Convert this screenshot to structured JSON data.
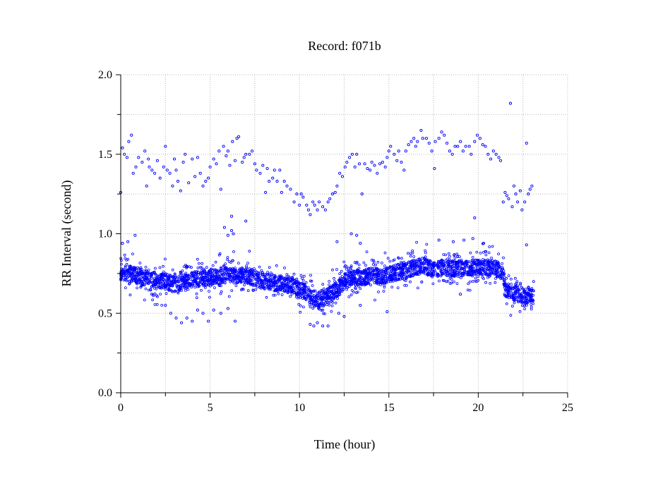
{
  "chart_data": {
    "type": "scatter",
    "title": "Record:  f071b",
    "xlabel": "Time (hour)",
    "ylabel": "RR Interval (second)",
    "xlim": [
      0,
      25
    ],
    "ylim": [
      0,
      2.0
    ],
    "x_ticks": [
      0,
      5,
      10,
      15,
      20,
      25
    ],
    "x_tick_labels": [
      "0",
      "5",
      "10",
      "15",
      "20",
      "25"
    ],
    "y_ticks": [
      0,
      0.5,
      1.0,
      1.5,
      2.0
    ],
    "y_tick_labels": [
      "0.0",
      "0.5",
      "1.0",
      "1.5",
      "2.0"
    ],
    "grid": true,
    "grid_style": "dotted",
    "marker_color": "#0000ff",
    "marker": "open-circle",
    "series": [
      {
        "points": [
          [
            0.0,
            1.26
          ],
          [
            0.1,
            1.54
          ],
          [
            0.2,
            1.5
          ],
          [
            0.35,
            1.48
          ],
          [
            0.45,
            1.58
          ],
          [
            0.6,
            1.62
          ],
          [
            0.7,
            1.38
          ],
          [
            0.85,
            1.42
          ],
          [
            1.0,
            1.48
          ],
          [
            1.2,
            1.45
          ],
          [
            1.35,
            1.52
          ],
          [
            1.45,
            1.3
          ],
          [
            1.55,
            1.47
          ],
          [
            1.6,
            1.42
          ],
          [
            1.75,
            1.4
          ],
          [
            1.9,
            1.38
          ],
          [
            2.05,
            1.46
          ],
          [
            2.2,
            1.35
          ],
          [
            2.4,
            1.42
          ],
          [
            2.5,
            1.55
          ],
          [
            2.6,
            1.4
          ],
          [
            2.75,
            1.38
          ],
          [
            2.9,
            1.3
          ],
          [
            3.0,
            1.47
          ],
          [
            3.1,
            1.4
          ],
          [
            3.2,
            1.33
          ],
          [
            3.35,
            1.27
          ],
          [
            3.5,
            1.45
          ],
          [
            3.6,
            1.5
          ],
          [
            3.8,
            1.32
          ],
          [
            4.0,
            1.47
          ],
          [
            4.15,
            1.36
          ],
          [
            4.3,
            1.48
          ],
          [
            4.45,
            1.38
          ],
          [
            4.6,
            1.3
          ],
          [
            4.75,
            1.33
          ],
          [
            4.9,
            1.35
          ],
          [
            5.0,
            1.42
          ],
          [
            5.2,
            1.47
          ],
          [
            5.35,
            1.44
          ],
          [
            5.5,
            1.52
          ],
          [
            5.6,
            1.28
          ],
          [
            5.75,
            1.55
          ],
          [
            5.9,
            1.49
          ],
          [
            6.0,
            1.52
          ],
          [
            6.1,
            1.43
          ],
          [
            6.25,
            1.58
          ],
          [
            6.4,
            1.46
          ],
          [
            6.5,
            1.6
          ],
          [
            6.6,
            1.61
          ],
          [
            6.8,
            1.45
          ],
          [
            6.9,
            1.48
          ],
          [
            7.0,
            1.5
          ],
          [
            7.2,
            1.5
          ],
          [
            7.35,
            1.52
          ],
          [
            7.5,
            1.44
          ],
          [
            7.6,
            1.4
          ],
          [
            7.8,
            1.38
          ],
          [
            7.95,
            1.43
          ],
          [
            8.1,
            1.26
          ],
          [
            8.2,
            1.41
          ],
          [
            8.3,
            1.33
          ],
          [
            8.5,
            1.35
          ],
          [
            8.6,
            1.4
          ],
          [
            8.75,
            1.33
          ],
          [
            8.9,
            1.4
          ],
          [
            9.0,
            1.26
          ],
          [
            9.15,
            1.33
          ],
          [
            9.3,
            1.3
          ],
          [
            9.5,
            1.28
          ],
          [
            9.7,
            1.2
          ],
          [
            9.85,
            1.25
          ],
          [
            10.0,
            1.18
          ],
          [
            10.1,
            1.25
          ],
          [
            10.2,
            1.23
          ],
          [
            10.4,
            1.18
          ],
          [
            10.5,
            1.15
          ],
          [
            10.6,
            1.12
          ],
          [
            10.75,
            1.2
          ],
          [
            10.85,
            1.18
          ],
          [
            11.0,
            1.15
          ],
          [
            11.1,
            1.2
          ],
          [
            11.3,
            1.17
          ],
          [
            11.45,
            1.15
          ],
          [
            11.6,
            1.2
          ],
          [
            11.7,
            1.22
          ],
          [
            11.85,
            1.25
          ],
          [
            12.0,
            1.26
          ],
          [
            12.1,
            1.3
          ],
          [
            12.25,
            1.38
          ],
          [
            12.4,
            1.36
          ],
          [
            12.55,
            1.42
          ],
          [
            12.65,
            1.45
          ],
          [
            12.8,
            1.48
          ],
          [
            12.95,
            1.5
          ],
          [
            13.1,
            1.42
          ],
          [
            13.2,
            1.5
          ],
          [
            13.35,
            1.44
          ],
          [
            13.5,
            1.25
          ],
          [
            13.65,
            1.44
          ],
          [
            13.8,
            1.41
          ],
          [
            13.95,
            1.4
          ],
          [
            14.05,
            1.45
          ],
          [
            14.2,
            1.43
          ],
          [
            14.35,
            1.38
          ],
          [
            14.5,
            1.44
          ],
          [
            14.65,
            1.45
          ],
          [
            14.8,
            1.42
          ],
          [
            14.9,
            1.48
          ],
          [
            15.0,
            1.52
          ],
          [
            15.1,
            1.55
          ],
          [
            15.3,
            1.5
          ],
          [
            15.45,
            1.46
          ],
          [
            15.55,
            1.52
          ],
          [
            15.7,
            1.45
          ],
          [
            15.85,
            1.4
          ],
          [
            15.95,
            1.52
          ],
          [
            16.1,
            1.56
          ],
          [
            16.25,
            1.58
          ],
          [
            16.4,
            1.6
          ],
          [
            16.5,
            1.55
          ],
          [
            16.6,
            1.58
          ],
          [
            16.8,
            1.65
          ],
          [
            16.9,
            1.6
          ],
          [
            17.1,
            1.6
          ],
          [
            17.25,
            1.57
          ],
          [
            17.4,
            1.52
          ],
          [
            17.55,
            1.41
          ],
          [
            17.6,
            1.58
          ],
          [
            17.8,
            1.6
          ],
          [
            17.95,
            1.64
          ],
          [
            18.1,
            1.62
          ],
          [
            18.25,
            1.57
          ],
          [
            18.4,
            1.52
          ],
          [
            18.55,
            1.5
          ],
          [
            18.7,
            1.55
          ],
          [
            18.85,
            1.55
          ],
          [
            19.0,
            1.58
          ],
          [
            19.15,
            1.52
          ],
          [
            19.3,
            1.55
          ],
          [
            19.5,
            1.55
          ],
          [
            19.6,
            1.5
          ],
          [
            19.8,
            1.58
          ],
          [
            19.95,
            1.62
          ],
          [
            20.1,
            1.6
          ],
          [
            20.25,
            1.56
          ],
          [
            20.4,
            1.55
          ],
          [
            20.55,
            1.5
          ],
          [
            20.7,
            1.47
          ],
          [
            20.85,
            1.52
          ],
          [
            21.0,
            1.5
          ],
          [
            21.15,
            1.48
          ],
          [
            21.25,
            1.46
          ],
          [
            21.4,
            1.2
          ],
          [
            21.5,
            1.26
          ],
          [
            21.6,
            1.24
          ],
          [
            21.7,
            1.22
          ],
          [
            21.8,
            1.82
          ],
          [
            21.9,
            1.17
          ],
          [
            22.0,
            1.3
          ],
          [
            22.1,
            1.25
          ],
          [
            22.2,
            1.2
          ],
          [
            22.35,
            1.27
          ],
          [
            22.45,
            1.15
          ],
          [
            22.6,
            1.2
          ],
          [
            22.7,
            1.57
          ],
          [
            22.8,
            1.25
          ],
          [
            22.9,
            1.28
          ],
          [
            23.0,
            1.3
          ],
          [
            11.0,
            0.55
          ],
          [
            11.3,
            0.52
          ],
          [
            11.6,
            0.57
          ],
          [
            11.9,
            0.6
          ],
          [
            12.2,
            0.65
          ],
          [
            12.5,
            0.68
          ],
          [
            12.8,
            0.7
          ],
          [
            13.1,
            0.72
          ],
          [
            2.5,
            0.55
          ],
          [
            2.8,
            0.5
          ],
          [
            3.1,
            0.47
          ],
          [
            3.4,
            0.44
          ],
          [
            3.7,
            0.47
          ],
          [
            4.0,
            0.45
          ],
          [
            4.3,
            0.52
          ],
          [
            4.6,
            0.5
          ],
          [
            4.9,
            0.45
          ],
          [
            5.2,
            0.52
          ],
          [
            5.6,
            0.5
          ],
          [
            6.0,
            0.53
          ],
          [
            6.4,
            0.45
          ],
          [
            10.6,
            0.43
          ],
          [
            10.8,
            0.42
          ],
          [
            11.0,
            0.44
          ],
          [
            11.3,
            0.42
          ],
          [
            11.6,
            0.42
          ],
          [
            12.2,
            0.5
          ],
          [
            12.5,
            0.48
          ],
          [
            13.4,
            0.55
          ],
          [
            14.9,
            0.51
          ],
          [
            19.0,
            0.62
          ],
          [
            19.8,
            1.1
          ],
          [
            5.8,
            1.04
          ],
          [
            6.3,
            1.0
          ],
          [
            6.2,
            1.11
          ],
          [
            7.0,
            1.08
          ],
          [
            12.1,
            0.95
          ],
          [
            12.9,
            1.0
          ],
          [
            13.2,
            0.99
          ],
          [
            13.4,
            0.94
          ],
          [
            0.1,
            0.94
          ],
          [
            0.4,
            0.95
          ],
          [
            0.8,
            0.99
          ],
          [
            17.8,
            0.96
          ],
          [
            18.6,
            0.95
          ],
          [
            19.2,
            0.96
          ],
          [
            19.7,
            0.97
          ],
          [
            20.3,
            0.94
          ],
          [
            22.7,
            0.93
          ],
          [
            6.2,
            1.02
          ],
          [
            6.0,
            0.99
          ]
        ]
      }
    ],
    "dense_band": {
      "x_range": [
        0,
        23.1
      ],
      "centerline": [
        [
          0,
          0.76
        ],
        [
          0.5,
          0.75
        ],
        [
          1,
          0.73
        ],
        [
          1.5,
          0.72
        ],
        [
          2,
          0.7
        ],
        [
          2.5,
          0.7
        ],
        [
          3,
          0.68
        ],
        [
          3.5,
          0.7
        ],
        [
          4,
          0.71
        ],
        [
          4.5,
          0.72
        ],
        [
          5,
          0.72
        ],
        [
          5.5,
          0.73
        ],
        [
          6,
          0.74
        ],
        [
          6.5,
          0.74
        ],
        [
          7,
          0.74
        ],
        [
          7.5,
          0.72
        ],
        [
          8,
          0.7
        ],
        [
          8.5,
          0.69
        ],
        [
          9,
          0.69
        ],
        [
          9.5,
          0.68
        ],
        [
          10,
          0.65
        ],
        [
          10.5,
          0.62
        ],
        [
          11,
          0.58
        ],
        [
          11.5,
          0.6
        ],
        [
          12,
          0.64
        ],
        [
          12.5,
          0.7
        ],
        [
          13,
          0.73
        ],
        [
          13.5,
          0.72
        ],
        [
          14,
          0.74
        ],
        [
          14.5,
          0.73
        ],
        [
          15,
          0.74
        ],
        [
          15.5,
          0.76
        ],
        [
          16,
          0.77
        ],
        [
          16.5,
          0.79
        ],
        [
          17,
          0.8
        ],
        [
          17.5,
          0.77
        ],
        [
          18,
          0.79
        ],
        [
          18.5,
          0.78
        ],
        [
          19,
          0.78
        ],
        [
          19.5,
          0.78
        ],
        [
          20,
          0.79
        ],
        [
          20.5,
          0.79
        ],
        [
          21,
          0.78
        ],
        [
          21.4,
          0.76
        ],
        [
          21.5,
          0.65
        ],
        [
          22,
          0.63
        ],
        [
          22.5,
          0.61
        ],
        [
          23.1,
          0.62
        ]
      ]
    }
  }
}
